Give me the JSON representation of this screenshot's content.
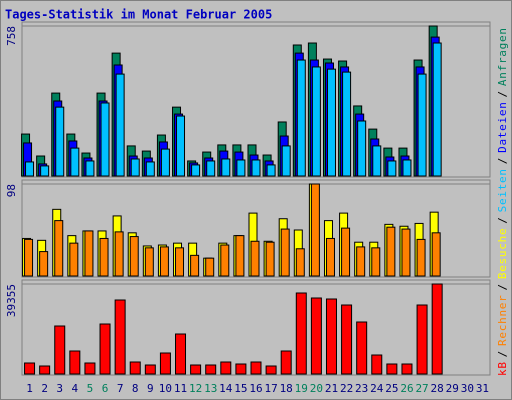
{
  "title": "Tages-Statistik im Monat Februar 2005",
  "legend_separator": "/",
  "chart_data": [
    {
      "type": "bar",
      "ylim": [
        0,
        758
      ],
      "yticks": [
        758
      ],
      "series": [
        {
          "name": "Anfragen",
          "color": "#00805c",
          "values": [
            212,
            101,
            419,
            212,
            116,
            419,
            621,
            152,
            126,
            207,
            348,
            76,
            121,
            157,
            157,
            157,
            106,
            273,
            662,
            672,
            591,
            581,
            354,
            237,
            141,
            141,
            586,
            758,
            null,
            null,
            null
          ]
        },
        {
          "name": "Dateien",
          "color": "#0000ff",
          "values": [
            167,
            61,
            379,
            177,
            91,
            379,
            561,
            101,
            91,
            172,
            313,
            66,
            91,
            126,
            121,
            106,
            76,
            202,
            621,
            586,
            571,
            551,
            313,
            187,
            96,
            101,
            551,
            702,
            null,
            null,
            null
          ]
        },
        {
          "name": "Seiten",
          "color": "#00c0ff",
          "values": [
            71,
            51,
            348,
            141,
            76,
            369,
            515,
            86,
            71,
            136,
            303,
            56,
            76,
            86,
            81,
            81,
            56,
            152,
            586,
            551,
            540,
            525,
            278,
            152,
            76,
            81,
            515,
            672,
            null,
            null,
            null
          ]
        }
      ]
    },
    {
      "type": "bar",
      "ylim": [
        0,
        98
      ],
      "yticks": [
        98
      ],
      "series": [
        {
          "name": "Besuche",
          "color": "#ffff00",
          "values": [
            40,
            38,
            71,
            43,
            48,
            48,
            64,
            46,
            32,
            33,
            35,
            35,
            19,
            35,
            43,
            67,
            37,
            61,
            49,
            98,
            59,
            67,
            36,
            36,
            55,
            53,
            56,
            68,
            null,
            null,
            null
          ]
        },
        {
          "name": "Rechner",
          "color": "#ff8000",
          "values": [
            39,
            26,
            59,
            35,
            48,
            40,
            47,
            42,
            30,
            31,
            30,
            22,
            19,
            33,
            43,
            37,
            36,
            50,
            29,
            98,
            40,
            51,
            31,
            30,
            52,
            50,
            39,
            46,
            null,
            null,
            null
          ]
        }
      ]
    },
    {
      "type": "bar",
      "ylim": [
        0,
        39355
      ],
      "yticks": [
        39355
      ],
      "categories": [
        "1",
        "2",
        "3",
        "4",
        "5",
        "6",
        "7",
        "8",
        "9",
        "10",
        "11",
        "12",
        "13",
        "14",
        "15",
        "16",
        "17",
        "18",
        "19",
        "20",
        "21",
        "22",
        "23",
        "24",
        "25",
        "26",
        "27",
        "28",
        "29",
        "30",
        "31"
      ],
      "category_colors": [
        "#000080",
        "#000080",
        "#000080",
        "#000080",
        "#00805c",
        "#00805c",
        "#000080",
        "#000080",
        "#000080",
        "#000080",
        "#000080",
        "#00805c",
        "#00805c",
        "#000080",
        "#000080",
        "#000080",
        "#000080",
        "#000080",
        "#00805c",
        "#00805c",
        "#000080",
        "#000080",
        "#000080",
        "#000080",
        "#000080",
        "#00805c",
        "#00805c",
        "#000080",
        "#000080",
        "#000080",
        "#000080"
      ],
      "series": [
        {
          "name": "kB",
          "color": "#ff0000",
          "values": [
            4810,
            3498,
            20989,
            10057,
            4810,
            21864,
            32359,
            5247,
            3935,
            9183,
            17491,
            3935,
            3935,
            5247,
            4373,
            5247,
            3498,
            10057,
            35420,
            33234,
            32797,
            30172,
            22739,
            8308,
            4373,
            4373,
            30172,
            39355,
            null,
            null,
            null
          ]
        }
      ]
    }
  ]
}
